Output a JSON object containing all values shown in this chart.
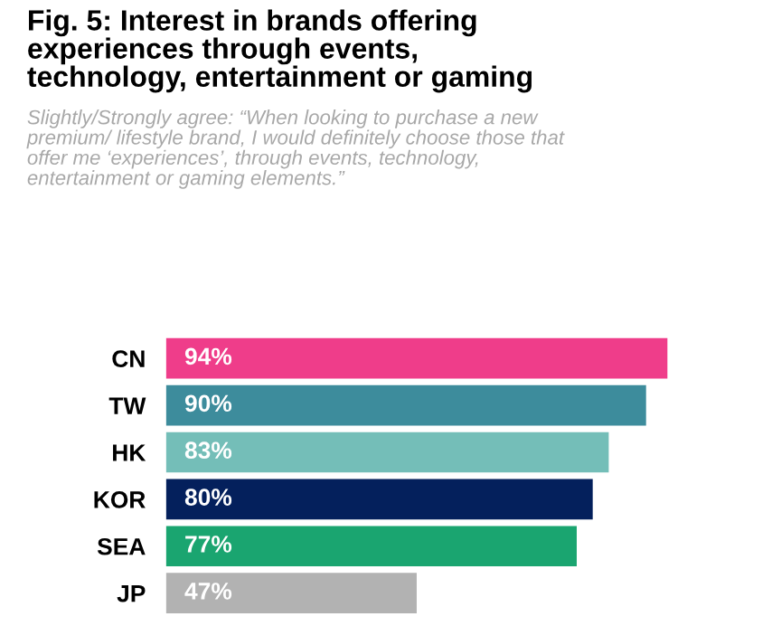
{
  "chart_data": {
    "type": "bar",
    "orientation": "horizontal",
    "title": "Fig. 5: Interest in brands offering\nexperiences through events,\ntechnology, entertainment or gaming",
    "subtitle": "Slightly/Strongly agree: “When looking to purchase a new\npremium/ lifestyle brand, I would definitely choose those that\noffer me ‘experiences’, through events, technology,\nentertainment or gaming elements.”",
    "categories": [
      "CN",
      "TW",
      "HK",
      "KOR",
      "SEA",
      "JP"
    ],
    "values": [
      94,
      90,
      83,
      80,
      77,
      47
    ],
    "value_labels": [
      "94%",
      "90%",
      "83%",
      "80%",
      "77%",
      "47%"
    ],
    "colors": [
      "#ef3d8a",
      "#3d8c9c",
      "#74beb8",
      "#04205c",
      "#1aa570",
      "#b2b2b2"
    ],
    "tick_labels": "y",
    "grid": false,
    "legend": false
  }
}
